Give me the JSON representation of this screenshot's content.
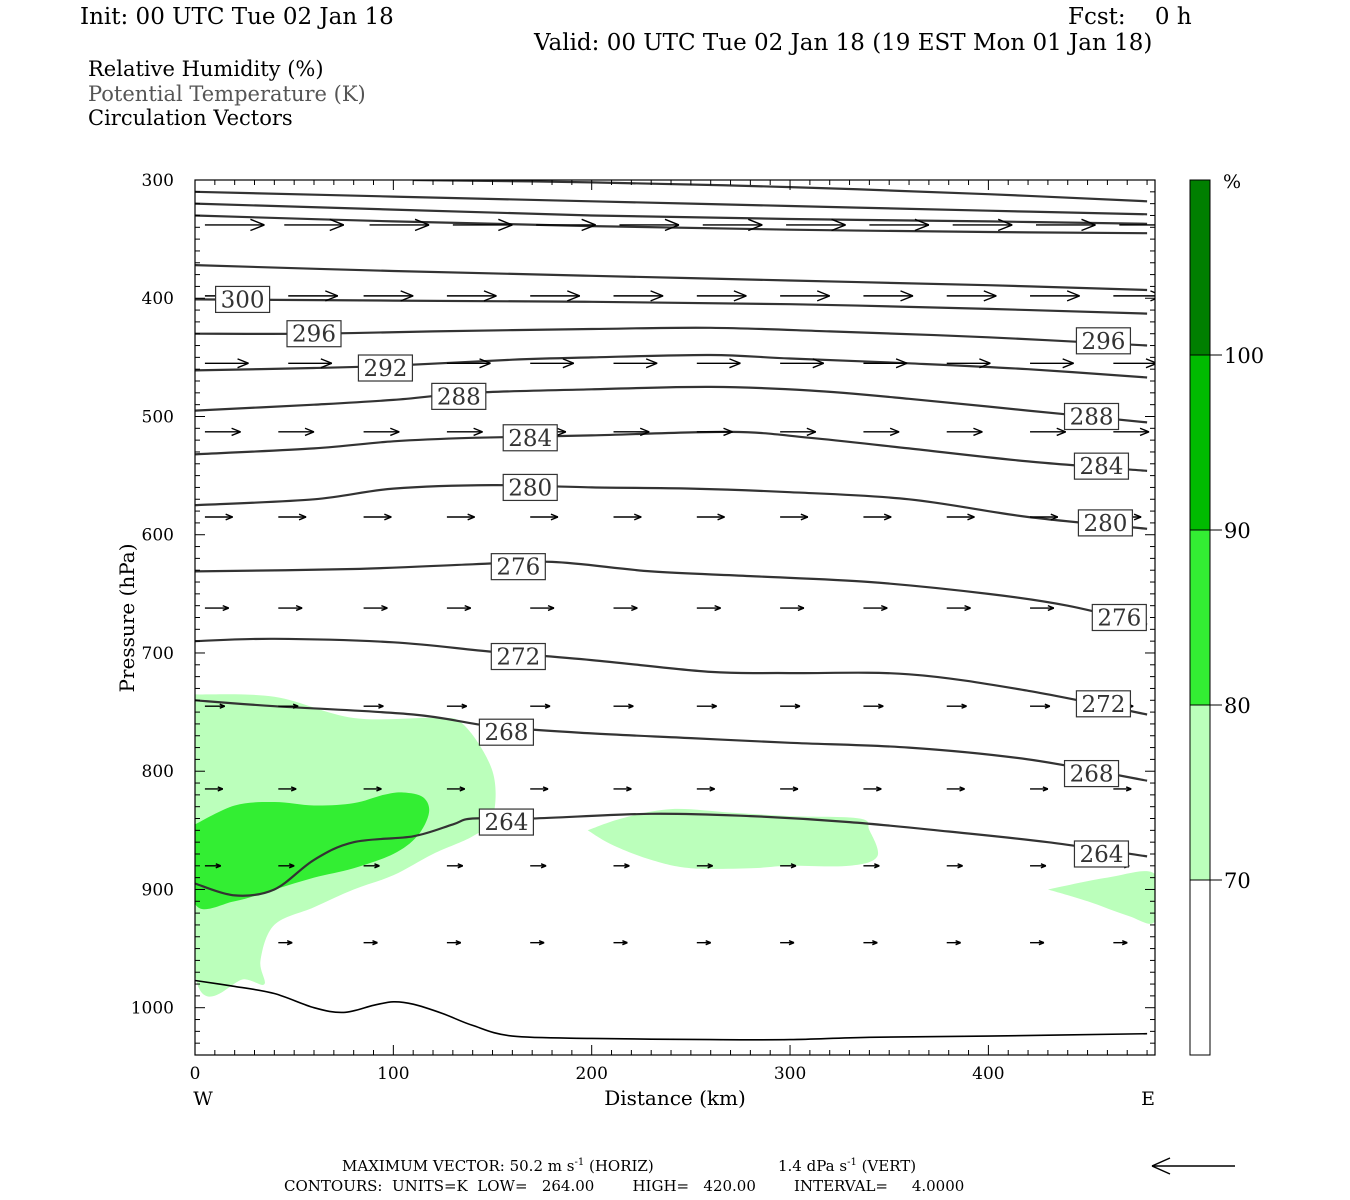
{
  "header": {
    "init": "Init: 00 UTC Tue 02 Jan 18",
    "fcst": "Fcst:    0 h",
    "valid": "Valid: 00 UTC Tue 02 Jan 18 (19 EST Mon 01 Jan 18)"
  },
  "legend_lines": {
    "rh": "Relative Humidity (%)",
    "theta": "Potential Temperature (K)",
    "vectors": "Circulation Vectors"
  },
  "colors": {
    "rh_70_80": "#bbffbb",
    "rh_80_90": "#33ee33",
    "rh_90_100": "#00bb00",
    "rh_100": "#007f00",
    "contour": "#333333",
    "vector": "#000000"
  },
  "chart_data": {
    "type": "cross-section",
    "xlabel": "Distance (km)",
    "ylabel": "Pressure (hPa)",
    "xlim": [
      0,
      484
    ],
    "ylim": [
      300,
      1040
    ],
    "y_inverted": true,
    "x_ticks": [
      "0",
      "100",
      "200",
      "300",
      "400"
    ],
    "x_tick_values": [
      0,
      100,
      200,
      300,
      400
    ],
    "y_ticks": [
      "300",
      "400",
      "500",
      "600",
      "700",
      "800",
      "900",
      "1000"
    ],
    "y_tick_values": [
      300,
      400,
      500,
      600,
      700,
      800,
      900,
      1000
    ],
    "x_end_labels": {
      "left": "W",
      "right": "E"
    },
    "colorbar": {
      "unit": "%",
      "labels": [
        "70",
        "80",
        "90",
        "100"
      ],
      "levels": [
        70,
        80,
        90,
        100
      ]
    },
    "isentropes": [
      {
        "theta": "264",
        "points": [
          [
            0,
            895
          ],
          [
            20,
            905
          ],
          [
            40,
            900
          ],
          [
            60,
            875
          ],
          [
            80,
            860
          ],
          [
            110,
            855
          ],
          [
            130,
            845
          ],
          [
            140,
            840
          ],
          [
            170,
            840
          ],
          [
            230,
            836
          ],
          [
            280,
            838
          ],
          [
            330,
            843
          ],
          [
            380,
            851
          ],
          [
            430,
            860
          ],
          [
            480,
            872
          ]
        ],
        "labels": [
          {
            "text": "264",
            "x": 157,
            "pos": 843
          },
          {
            "text": "264",
            "x": 457,
            "pos": 870
          }
        ]
      },
      {
        "theta": "268",
        "points": [
          [
            0,
            740
          ],
          [
            40,
            745
          ],
          [
            110,
            752
          ],
          [
            150,
            762
          ],
          [
            200,
            768
          ],
          [
            250,
            772
          ],
          [
            300,
            776
          ],
          [
            360,
            780
          ],
          [
            420,
            790
          ],
          [
            480,
            808
          ]
        ],
        "labels": [
          {
            "text": "268",
            "x": 157,
            "pos": 767
          },
          {
            "text": "268",
            "x": 452,
            "pos": 802
          }
        ]
      },
      {
        "theta": "272",
        "points": [
          [
            0,
            690
          ],
          [
            40,
            688
          ],
          [
            100,
            691
          ],
          [
            150,
            699
          ],
          [
            200,
            706
          ],
          [
            260,
            716
          ],
          [
            300,
            717
          ],
          [
            360,
            718
          ],
          [
            420,
            732
          ],
          [
            480,
            752
          ]
        ],
        "labels": [
          {
            "text": "272",
            "x": 163,
            "pos": 703
          },
          {
            "text": "272",
            "x": 458,
            "pos": 743
          }
        ]
      },
      {
        "theta": "276",
        "points": [
          [
            0,
            631
          ],
          [
            80,
            629
          ],
          [
            140,
            625
          ],
          [
            180,
            623
          ],
          [
            230,
            631
          ],
          [
            280,
            635
          ],
          [
            340,
            640
          ],
          [
            400,
            650
          ],
          [
            440,
            660
          ],
          [
            480,
            676
          ]
        ],
        "labels": [
          {
            "text": "276",
            "x": 163,
            "pos": 627
          },
          {
            "text": "276",
            "x": 466,
            "pos": 670
          }
        ]
      },
      {
        "theta": "280",
        "points": [
          [
            0,
            575
          ],
          [
            60,
            570
          ],
          [
            100,
            561
          ],
          [
            150,
            558
          ],
          [
            200,
            560
          ],
          [
            250,
            561
          ],
          [
            300,
            564
          ],
          [
            360,
            570
          ],
          [
            420,
            585
          ],
          [
            480,
            595
          ]
        ],
        "labels": [
          {
            "text": "280",
            "x": 169,
            "pos": 560
          },
          {
            "text": "280",
            "x": 459,
            "pos": 590
          }
        ]
      },
      {
        "theta": "284",
        "points": [
          [
            0,
            532
          ],
          [
            60,
            527
          ],
          [
            100,
            521
          ],
          [
            140,
            518
          ],
          [
            200,
            516
          ],
          [
            270,
            513
          ],
          [
            310,
            518
          ],
          [
            360,
            527
          ],
          [
            420,
            538
          ],
          [
            480,
            546
          ]
        ],
        "labels": [
          {
            "text": "284",
            "x": 169,
            "pos": 518
          },
          {
            "text": "284",
            "x": 457,
            "pos": 542
          }
        ]
      },
      {
        "theta": "288",
        "points": [
          [
            0,
            495
          ],
          [
            60,
            490
          ],
          [
            100,
            486
          ],
          [
            140,
            480
          ],
          [
            200,
            477
          ],
          [
            260,
            475
          ],
          [
            310,
            478
          ],
          [
            360,
            485
          ],
          [
            420,
            495
          ],
          [
            480,
            505
          ]
        ],
        "labels": [
          {
            "text": "288",
            "x": 133,
            "pos": 483
          },
          {
            "text": "288",
            "x": 452,
            "pos": 500
          }
        ]
      },
      {
        "theta": "292",
        "points": [
          [
            0,
            461
          ],
          [
            60,
            459
          ],
          [
            100,
            457
          ],
          [
            160,
            452
          ],
          [
            200,
            450
          ],
          [
            260,
            448
          ],
          [
            300,
            451
          ],
          [
            360,
            455
          ],
          [
            420,
            460
          ],
          [
            480,
            467
          ]
        ],
        "labels": [
          {
            "text": "292",
            "x": 96,
            "pos": 459
          }
        ]
      },
      {
        "theta": "296",
        "points": [
          [
            0,
            430
          ],
          [
            60,
            430
          ],
          [
            120,
            428
          ],
          [
            200,
            426
          ],
          [
            260,
            425
          ],
          [
            320,
            428
          ],
          [
            400,
            433
          ],
          [
            480,
            440
          ]
        ],
        "labels": [
          {
            "text": "296",
            "x": 60,
            "pos": 430
          },
          {
            "text": "296",
            "x": 458,
            "pos": 436
          }
        ]
      },
      {
        "theta": "300",
        "points": [
          [
            0,
            401
          ],
          [
            100,
            402
          ],
          [
            200,
            403
          ],
          [
            300,
            405
          ],
          [
            400,
            409
          ],
          [
            480,
            413
          ]
        ],
        "labels": [
          {
            "text": "300",
            "x": 24,
            "pos": 401
          }
        ]
      },
      {
        "theta": "",
        "points": [
          [
            0,
            372
          ],
          [
            100,
            377
          ],
          [
            200,
            381
          ],
          [
            300,
            385
          ],
          [
            400,
            389
          ],
          [
            480,
            393
          ]
        ],
        "labels": []
      },
      {
        "theta": "",
        "points": [
          [
            0,
            330
          ],
          [
            100,
            335
          ],
          [
            200,
            339
          ],
          [
            300,
            342
          ],
          [
            400,
            344
          ],
          [
            480,
            345
          ]
        ],
        "labels": []
      },
      {
        "theta": "",
        "points": [
          [
            0,
            310
          ],
          [
            100,
            314
          ],
          [
            200,
            318
          ],
          [
            300,
            322
          ],
          [
            400,
            326
          ],
          [
            480,
            329
          ]
        ],
        "labels": []
      },
      {
        "theta": "",
        "points": [
          [
            110,
            300
          ],
          [
            200,
            302
          ],
          [
            300,
            306
          ],
          [
            400,
            312
          ],
          [
            480,
            318
          ]
        ],
        "labels": []
      },
      {
        "theta": "",
        "points": [
          [
            0,
            320
          ],
          [
            100,
            325
          ],
          [
            200,
            330
          ],
          [
            300,
            333
          ],
          [
            400,
            335
          ],
          [
            480,
            337
          ]
        ],
        "labels": []
      }
    ],
    "surface_line": [
      [
        0,
        977
      ],
      [
        20,
        982
      ],
      [
        40,
        988
      ],
      [
        60,
        1000
      ],
      [
        75,
        1004
      ],
      [
        90,
        998
      ],
      [
        100,
        995
      ],
      [
        110,
        997
      ],
      [
        125,
        1005
      ],
      [
        140,
        1015
      ],
      [
        160,
        1024
      ],
      [
        200,
        1026
      ],
      [
        260,
        1027
      ],
      [
        300,
        1027
      ],
      [
        340,
        1025
      ],
      [
        400,
        1024
      ],
      [
        480,
        1022
      ]
    ],
    "rh_regions": [
      {
        "level": "70-80",
        "points": [
          [
            0,
            735
          ],
          [
            40,
            737
          ],
          [
            80,
            755
          ],
          [
            120,
            755
          ],
          [
            135,
            760
          ],
          [
            150,
            800
          ],
          [
            150,
            840
          ],
          [
            140,
            855
          ],
          [
            120,
            870
          ],
          [
            100,
            888
          ],
          [
            80,
            900
          ],
          [
            60,
            915
          ],
          [
            40,
            930
          ],
          [
            33,
            960
          ],
          [
            35,
            980
          ],
          [
            25,
            976
          ],
          [
            0,
            972
          ]
        ]
      },
      {
        "level": "70-80",
        "points": [
          [
            198,
            850
          ],
          [
            215,
            840
          ],
          [
            240,
            832
          ],
          [
            270,
            835
          ],
          [
            300,
            838
          ],
          [
            335,
            840
          ],
          [
            340,
            850
          ],
          [
            344,
            872
          ],
          [
            330,
            880
          ],
          [
            300,
            880
          ],
          [
            280,
            882
          ],
          [
            250,
            882
          ],
          [
            230,
            875
          ],
          [
            210,
            862
          ]
        ]
      },
      {
        "level": "70-80",
        "points": [
          [
            430,
            900
          ],
          [
            460,
            890
          ],
          [
            484,
            887
          ],
          [
            484,
            927
          ],
          [
            470,
            922
          ],
          [
            450,
            910
          ]
        ]
      },
      {
        "level": "80-90",
        "points": [
          [
            0,
            845
          ],
          [
            20,
            829
          ],
          [
            40,
            826
          ],
          [
            60,
            829
          ],
          [
            80,
            827
          ],
          [
            95,
            820
          ],
          [
            105,
            818
          ],
          [
            115,
            822
          ],
          [
            118,
            835
          ],
          [
            112,
            855
          ],
          [
            100,
            870
          ],
          [
            80,
            882
          ],
          [
            60,
            890
          ],
          [
            40,
            900
          ],
          [
            20,
            910
          ],
          [
            0,
            912
          ]
        ]
      }
    ],
    "vectors": [
      {
        "p": 338,
        "len": 30,
        "xs": [
          5,
          45,
          88,
          130,
          172,
          214,
          256,
          298,
          340,
          382,
          424,
          466
        ]
      },
      {
        "p": 398,
        "len": 25,
        "xs": [
          5,
          47,
          85,
          127,
          169,
          211,
          253,
          295,
          337,
          379,
          421,
          463
        ]
      },
      {
        "p": 455,
        "len": 22,
        "xs": [
          5,
          47,
          85,
          127,
          169,
          211,
          253,
          295,
          337,
          379,
          421,
          463
        ]
      },
      {
        "p": 513,
        "len": 18,
        "xs": [
          5,
          42,
          85,
          127,
          169,
          211,
          253,
          295,
          337,
          379,
          421,
          463
        ]
      },
      {
        "p": 585,
        "len": 14,
        "xs": [
          5,
          42,
          85,
          127,
          169,
          211,
          253,
          295,
          337,
          379,
          421,
          463
        ]
      },
      {
        "p": 662,
        "len": 12,
        "xs": [
          5,
          42,
          85,
          127,
          169,
          211,
          253,
          295,
          337,
          379,
          421,
          463
        ]
      },
      {
        "p": 745,
        "len": 10,
        "xs": [
          5,
          42,
          85,
          127,
          169,
          211,
          253,
          295,
          337,
          379,
          421,
          463
        ]
      },
      {
        "p": 815,
        "len": 9,
        "xs": [
          5,
          42,
          85,
          127,
          169,
          211,
          253,
          295,
          337,
          379,
          421,
          463
        ]
      },
      {
        "p": 880,
        "len": 8,
        "xs": [
          5,
          42,
          85,
          127,
          169,
          211,
          253,
          295,
          337,
          379,
          421,
          463
        ]
      },
      {
        "p": 945,
        "len": 7,
        "xs": [
          42,
          85,
          127,
          169,
          211,
          253,
          295,
          337,
          379,
          421,
          463
        ]
      }
    ],
    "footer": {
      "max_vector_prefix": "MAXIMUM VECTOR:  50.2 m s",
      "sup1": "-1",
      "horiz": " (HORIZ)",
      "vert_prefix": "1.4 dPa s",
      "sup2": "-1",
      "vert": " (VERT)",
      "contours": "CONTOURS:  UNITS=K  LOW=   264.00        HIGH=   420.00        INTERVAL=     4.0000"
    }
  }
}
